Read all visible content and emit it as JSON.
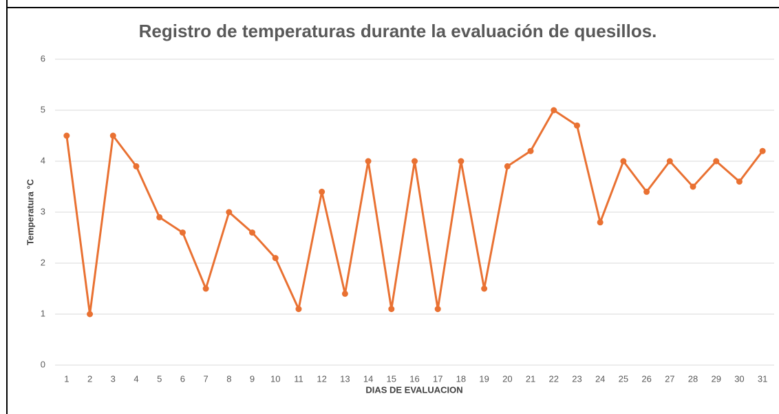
{
  "chart_data": {
    "type": "line",
    "title": "Registro de temperaturas durante la evaluación de quesillos.",
    "xlabel": "DIAS DE EVALUACION",
    "ylabel": "Temperatura °C",
    "categories": [
      1,
      2,
      3,
      4,
      5,
      6,
      7,
      8,
      9,
      10,
      11,
      12,
      13,
      14,
      15,
      16,
      17,
      18,
      19,
      20,
      21,
      22,
      23,
      24,
      25,
      26,
      27,
      28,
      29,
      30,
      31
    ],
    "series": [
      {
        "color": "#e97132",
        "values": [
          4.5,
          1.0,
          4.5,
          3.9,
          2.9,
          2.6,
          1.5,
          3.0,
          2.6,
          2.1,
          1.1,
          3.4,
          1.4,
          4.0,
          1.1,
          4.0,
          1.1,
          4.0,
          1.5,
          3.9,
          4.2,
          5.0,
          4.7,
          2.8,
          4.0,
          3.4,
          4.0,
          3.5,
          4.0,
          3.6,
          4.2
        ]
      }
    ],
    "ylim": [
      0,
      6
    ],
    "yticks": [
      0,
      1,
      2,
      3,
      4,
      5,
      6
    ],
    "grid": true,
    "markers": true
  }
}
